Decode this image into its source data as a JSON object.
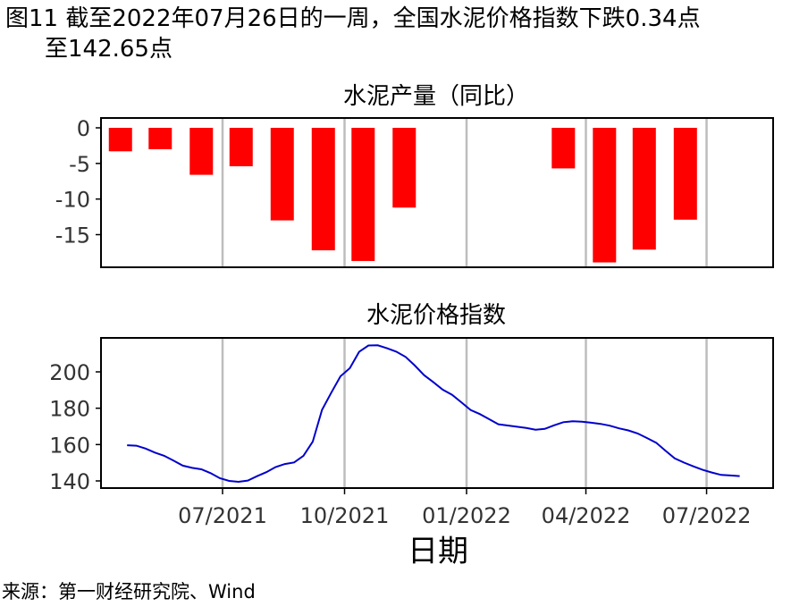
{
  "figure": {
    "title_line1": "图11  截至2022年07月26日的一周，全国水泥价格指数下跌0.34点",
    "title_line2": "至142.65点",
    "source": "来源：第一财经研究院、Wind"
  },
  "chart_data": [
    {
      "type": "bar",
      "title": "水泥产量（同比）",
      "ylim": [
        -20,
        0.5
      ],
      "yticks": [
        0,
        -5,
        -10,
        -15
      ],
      "bar_color": "#ff0000",
      "x": [
        "2021-04",
        "2021-05",
        "2021-06",
        "2021-07",
        "2021-08",
        "2021-09",
        "2021-10",
        "2021-11",
        "2021-12",
        "2022-03",
        "2022-04",
        "2022-05",
        "2022-06"
      ],
      "values": [
        -3.3,
        -3.0,
        -6.6,
        -5.4,
        -13.0,
        -17.2,
        -18.7,
        -11.2,
        0,
        -5.7,
        -18.9,
        -17.1,
        -12.9
      ],
      "grid": "vertical",
      "legend": "none"
    },
    {
      "type": "line",
      "title": "水泥价格指数",
      "xlabel": "日期",
      "ylim": [
        137,
        217
      ],
      "yticks": [
        140,
        160,
        180,
        200
      ],
      "xtick_labels": [
        "07/2021",
        "10/2021",
        "01/2022",
        "04/2022",
        "07/2022"
      ],
      "line_color": "#0000cc",
      "grid": "vertical",
      "legend": "none",
      "series": [
        {
          "x": [
            "2021-04-20",
            "2021-04-27",
            "2021-05-04",
            "2021-05-11",
            "2021-05-18",
            "2021-05-25",
            "2021-06-01",
            "2021-06-08",
            "2021-06-15",
            "2021-06-22",
            "2021-06-29",
            "2021-07-06",
            "2021-07-13",
            "2021-07-20",
            "2021-07-27",
            "2021-08-03",
            "2021-08-10",
            "2021-08-17",
            "2021-08-24",
            "2021-08-31",
            "2021-09-07",
            "2021-09-14",
            "2021-09-21",
            "2021-09-28",
            "2021-10-05",
            "2021-10-12",
            "2021-10-19",
            "2021-10-26",
            "2021-11-02",
            "2021-11-09",
            "2021-11-16",
            "2021-11-23",
            "2021-11-30",
            "2021-12-07",
            "2021-12-14",
            "2021-12-21",
            "2021-12-28",
            "2022-01-04",
            "2022-01-11",
            "2022-01-18",
            "2022-01-25",
            "2022-02-01",
            "2022-02-15",
            "2022-02-22",
            "2022-03-01",
            "2022-03-08",
            "2022-03-15",
            "2022-03-22",
            "2022-03-29",
            "2022-04-05",
            "2022-04-12",
            "2022-04-19",
            "2022-04-26",
            "2022-05-03",
            "2022-05-10",
            "2022-05-17",
            "2022-05-24",
            "2022-05-31",
            "2022-06-07",
            "2022-06-14",
            "2022-06-21",
            "2022-06-28",
            "2022-07-05",
            "2022-07-12",
            "2022-07-19",
            "2022-07-26"
          ],
          "values": [
            159.6,
            159.4,
            157.8,
            155.6,
            153.8,
            151.2,
            148.4,
            147.2,
            146.4,
            144.3,
            141.5,
            140.0,
            139.5,
            140.2,
            142.6,
            144.8,
            147.6,
            149.3,
            150.2,
            153.8,
            161.6,
            179.1,
            188.6,
            197.6,
            202.0,
            211.0,
            214.5,
            214.6,
            213.0,
            211.1,
            208.2,
            203.5,
            198.2,
            194.3,
            190.2,
            187.4,
            183.3,
            179.0,
            176.8,
            174.0,
            171.2,
            170.5,
            169.1,
            168.2,
            168.6,
            170.6,
            172.3,
            172.8,
            172.6,
            172.0,
            171.4,
            170.4,
            168.9,
            167.8,
            166.1,
            163.6,
            161.0,
            156.6,
            152.4,
            150.1,
            148.0,
            146.1,
            144.6,
            143.3,
            143.0,
            142.65
          ]
        }
      ]
    }
  ]
}
